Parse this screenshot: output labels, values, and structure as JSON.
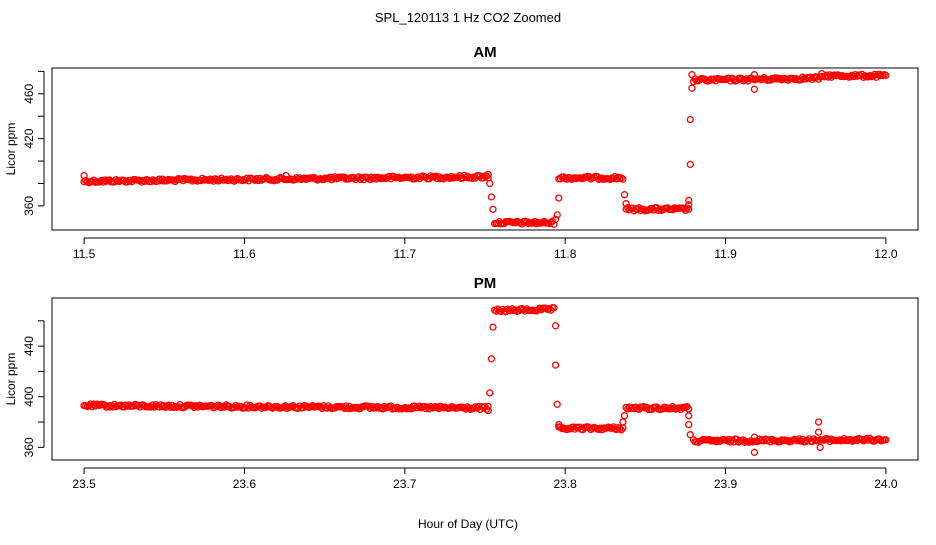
{
  "chart_data": {
    "title": "SPL_120113  1 Hz CO2 Zoomed",
    "xlabel": "Hour of Day (UTC)",
    "series_color": "#ff0000",
    "marker": "open-circle",
    "panels": [
      {
        "type": "scatter",
        "title": "AM",
        "ylabel": "Licor ppm",
        "xlim": [
          11.48,
          12.02
        ],
        "ylim": [
          338.5,
          483
        ],
        "xticks": [
          "11.5",
          "11.6",
          "11.7",
          "11.8",
          "11.9",
          "12.0"
        ],
        "xtick_values": [
          11.5,
          11.6,
          11.7,
          11.8,
          11.9,
          12.0
        ],
        "yticks": [
          "360",
          "420",
          "460"
        ],
        "ytick_values": [
          360,
          420,
          460
        ],
        "yticks_minor": [
          380,
          400,
          440,
          480
        ],
        "segments": [
          {
            "x_start": 11.5,
            "x_end": 11.752,
            "y_start": 382,
            "y_end": 386
          },
          {
            "x_start": 11.756,
            "x_end": 11.793,
            "y_start": 345,
            "y_end": 345
          },
          {
            "x_start": 11.796,
            "x_end": 11.836,
            "y_start": 385,
            "y_end": 385
          },
          {
            "x_start": 11.838,
            "x_end": 11.877,
            "y_start": 357,
            "y_end": 357
          },
          {
            "x_start": 11.88,
            "x_end": 11.96,
            "y_start": 472,
            "y_end": 474
          },
          {
            "x_start": 11.962,
            "x_end": 12.0,
            "y_start": 476,
            "y_end": 476
          }
        ],
        "outliers": [
          {
            "x": 11.5,
            "y": 387
          },
          {
            "x": 11.626,
            "y": 387
          },
          {
            "x": 11.752,
            "y": 388
          },
          {
            "x": 11.753,
            "y": 380
          },
          {
            "x": 11.754,
            "y": 368
          },
          {
            "x": 11.755,
            "y": 357
          },
          {
            "x": 11.794,
            "y": 348
          },
          {
            "x": 11.795,
            "y": 352
          },
          {
            "x": 11.796,
            "y": 367
          },
          {
            "x": 11.837,
            "y": 370
          },
          {
            "x": 11.838,
            "y": 362
          },
          {
            "x": 11.877,
            "y": 361
          },
          {
            "x": 11.877,
            "y": 365
          },
          {
            "x": 11.878,
            "y": 397
          },
          {
            "x": 11.878,
            "y": 437
          },
          {
            "x": 11.879,
            "y": 465
          },
          {
            "x": 11.879,
            "y": 477
          },
          {
            "x": 11.918,
            "y": 464
          },
          {
            "x": 11.918,
            "y": 477
          },
          {
            "x": 11.96,
            "y": 478
          }
        ]
      },
      {
        "type": "scatter",
        "title": "PM",
        "ylabel": "Licor ppm",
        "xlim": [
          23.48,
          24.02
        ],
        "ylim": [
          350,
          478
        ],
        "xticks": [
          "23.5",
          "23.6",
          "23.7",
          "23.8",
          "23.9",
          "24.0"
        ],
        "xtick_values": [
          23.5,
          23.6,
          23.7,
          23.8,
          23.9,
          24.0
        ],
        "yticks": [
          "360",
          "400",
          "440"
        ],
        "ytick_values": [
          360,
          400,
          440
        ],
        "yticks_minor": [
          380,
          420,
          460
        ],
        "segments": [
          {
            "x_start": 23.5,
            "x_end": 23.752,
            "y_start": 393,
            "y_end": 391
          },
          {
            "x_start": 23.756,
            "x_end": 23.793,
            "y_start": 468,
            "y_end": 469
          },
          {
            "x_start": 23.796,
            "x_end": 23.836,
            "y_start": 375,
            "y_end": 375
          },
          {
            "x_start": 23.838,
            "x_end": 23.877,
            "y_start": 391,
            "y_end": 391
          },
          {
            "x_start": 23.88,
            "x_end": 24.0,
            "y_start": 365,
            "y_end": 366
          }
        ],
        "outliers": [
          {
            "x": 23.752,
            "y": 389
          },
          {
            "x": 23.753,
            "y": 403
          },
          {
            "x": 23.754,
            "y": 430
          },
          {
            "x": 23.755,
            "y": 455
          },
          {
            "x": 23.794,
            "y": 456
          },
          {
            "x": 23.794,
            "y": 425
          },
          {
            "x": 23.795,
            "y": 394
          },
          {
            "x": 23.796,
            "y": 378
          },
          {
            "x": 23.836,
            "y": 380
          },
          {
            "x": 23.837,
            "y": 385
          },
          {
            "x": 23.877,
            "y": 385
          },
          {
            "x": 23.877,
            "y": 378
          },
          {
            "x": 23.878,
            "y": 370
          },
          {
            "x": 23.918,
            "y": 368
          },
          {
            "x": 23.918,
            "y": 356
          },
          {
            "x": 23.958,
            "y": 380
          },
          {
            "x": 23.958,
            "y": 372
          },
          {
            "x": 23.959,
            "y": 360
          }
        ]
      }
    ]
  }
}
